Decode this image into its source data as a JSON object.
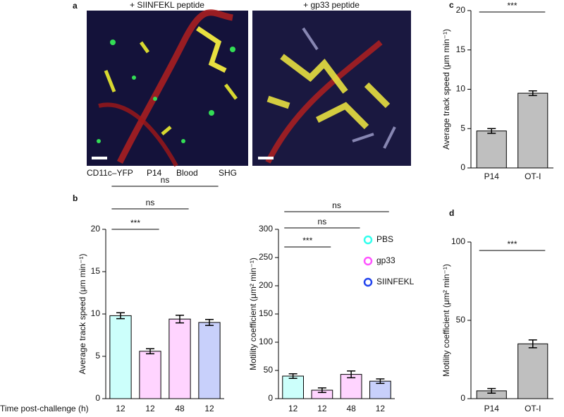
{
  "figure": {
    "panel_a": {
      "label": "a",
      "image_titles": [
        "+ SIINFEKL peptide",
        "+ gp33 peptide"
      ],
      "channels": [
        {
          "name": "CD11c–YFP",
          "color": "#f2e600"
        },
        {
          "name": "P14",
          "color": "#33e633"
        },
        {
          "name": "Blood",
          "color": "#ff3333"
        },
        {
          "name": "SHG",
          "color": "#3333ff"
        }
      ]
    },
    "panel_b_label": "b",
    "xlabel": "Time post-challenge (h)"
  },
  "chart_data": [
    {
      "type": "bar",
      "ylabel": "Average track speed (μm min⁻¹)",
      "categories": [
        "12",
        "12",
        "48",
        "12"
      ],
      "values": [
        9.8,
        5.6,
        9.4,
        9.0
      ],
      "errors": [
        0.35,
        0.3,
        0.45,
        0.35
      ],
      "colors": [
        "#33ffee",
        "#ff55ff",
        "#ff55ff",
        "#2244ee"
      ],
      "ylim": [
        0,
        20
      ],
      "yticks": [
        0,
        5,
        10,
        15,
        20
      ],
      "annotations": [
        "***",
        "ns",
        "ns"
      ]
    },
    {
      "type": "bar",
      "ylabel": "Motility coefficient (μm² min⁻¹)",
      "categories": [
        "12",
        "12",
        "48",
        "12"
      ],
      "values": [
        40,
        15,
        43,
        31
      ],
      "errors": [
        4,
        4,
        6,
        4
      ],
      "colors": [
        "#33ffee",
        "#ff55ff",
        "#ff55ff",
        "#2244ee"
      ],
      "ylim": [
        0,
        300
      ],
      "yticks": [
        0,
        50,
        100,
        150,
        200,
        250,
        300
      ],
      "annotations": [
        "***",
        "ns",
        "ns"
      ],
      "legend": [
        {
          "name": "PBS",
          "color": "#33ffee"
        },
        {
          "name": "gp33",
          "color": "#ff55ff"
        },
        {
          "name": "SIINFEKL",
          "color": "#2244ee"
        }
      ]
    },
    {
      "type": "bar",
      "label": "c",
      "ylabel": "Average track speed (μm min⁻¹)",
      "categories": [
        "P14",
        "OT-I"
      ],
      "values": [
        4.7,
        9.5
      ],
      "errors": [
        0.3,
        0.3
      ],
      "colors": [
        "#000000",
        "#000000"
      ],
      "ylim": [
        0,
        20
      ],
      "yticks": [
        0,
        5,
        10,
        15,
        20
      ],
      "annotations": [
        "***"
      ]
    },
    {
      "type": "bar",
      "label": "d",
      "ylabel": "Motility coefficient (μm² min⁻¹)",
      "categories": [
        "P14",
        "OT-I"
      ],
      "values": [
        5,
        35
      ],
      "errors": [
        1.5,
        2.5
      ],
      "colors": [
        "#000000",
        "#000000"
      ],
      "ylim": [
        0,
        100
      ],
      "yticks": [
        0,
        50,
        100
      ],
      "annotations": [
        "***"
      ]
    }
  ]
}
